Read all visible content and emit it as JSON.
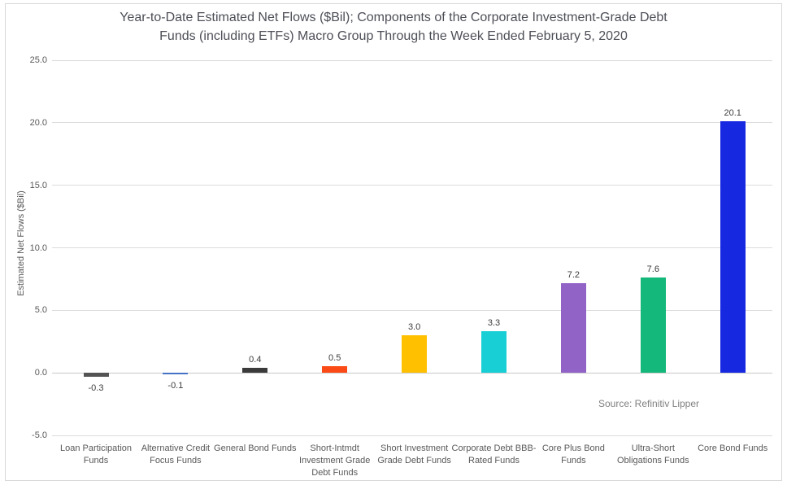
{
  "title": {
    "line1": "Year-to-Date Estimated Net Flows ($Bil); Components of the Corporate Investment-Grade Debt",
    "line2": "Funds (including ETFs) Macro Group Through the Week Ended February 5, 2020"
  },
  "source_note": "Source: Refinitiv Lipper",
  "chart_data": {
    "type": "bar",
    "title": "Year-to-Date Estimated Net Flows ($Bil); Components of the Corporate Investment-Grade Debt Funds (including ETFs) Macro Group Through the Week Ended February 5, 2020",
    "ylabel": "Estimated Net Flows ($Bil)",
    "xlabel": "",
    "ylim": [
      -5.0,
      25.0
    ],
    "ytick_interval": 5.0,
    "yticks": [
      25.0,
      20.0,
      15.0,
      10.0,
      5.0,
      0.0,
      -5.0
    ],
    "ytick_labels": [
      "25.0",
      "20.0",
      "15.0",
      "10.0",
      "5.0",
      "0.0",
      "-5.0"
    ],
    "grid": true,
    "legend": false,
    "categories": [
      "Loan Participation Funds",
      "Alternative Credit Focus Funds",
      "General Bond Funds",
      "Short-Intmdt Investment Grade Debt Funds",
      "Short Investment Grade Debt Funds",
      "Corporate Debt BBB-Rated Funds",
      "Core Plus Bond Funds",
      "Ultra-Short Obligations Funds",
      "Core Bond Funds"
    ],
    "values": [
      -0.3,
      -0.1,
      0.4,
      0.5,
      3.0,
      3.3,
      7.2,
      7.6,
      20.1
    ],
    "data_labels": [
      "-0.3",
      "-0.1",
      "0.4",
      "0.5",
      "3.0",
      "3.3",
      "7.2",
      "7.6",
      "20.1"
    ],
    "bar_colors": [
      "#545454",
      "#4472C4",
      "#3A3A3A",
      "#FB4A15",
      "#FFC000",
      "#18CFD6",
      "#9163C7",
      "#14B87A",
      "#1728E1"
    ],
    "annotation": "Source: Refinitiv Lipper"
  },
  "colors": {
    "background": "#FFFFFF",
    "frame_border": "#D9D9D9",
    "title_text": "#4D4F57",
    "axis_text": "#595959",
    "data_label_text": "#3C3C3C",
    "source_text": "#808080",
    "gridline": "#DCDCDC",
    "zero_line": "#C9C9C9"
  }
}
